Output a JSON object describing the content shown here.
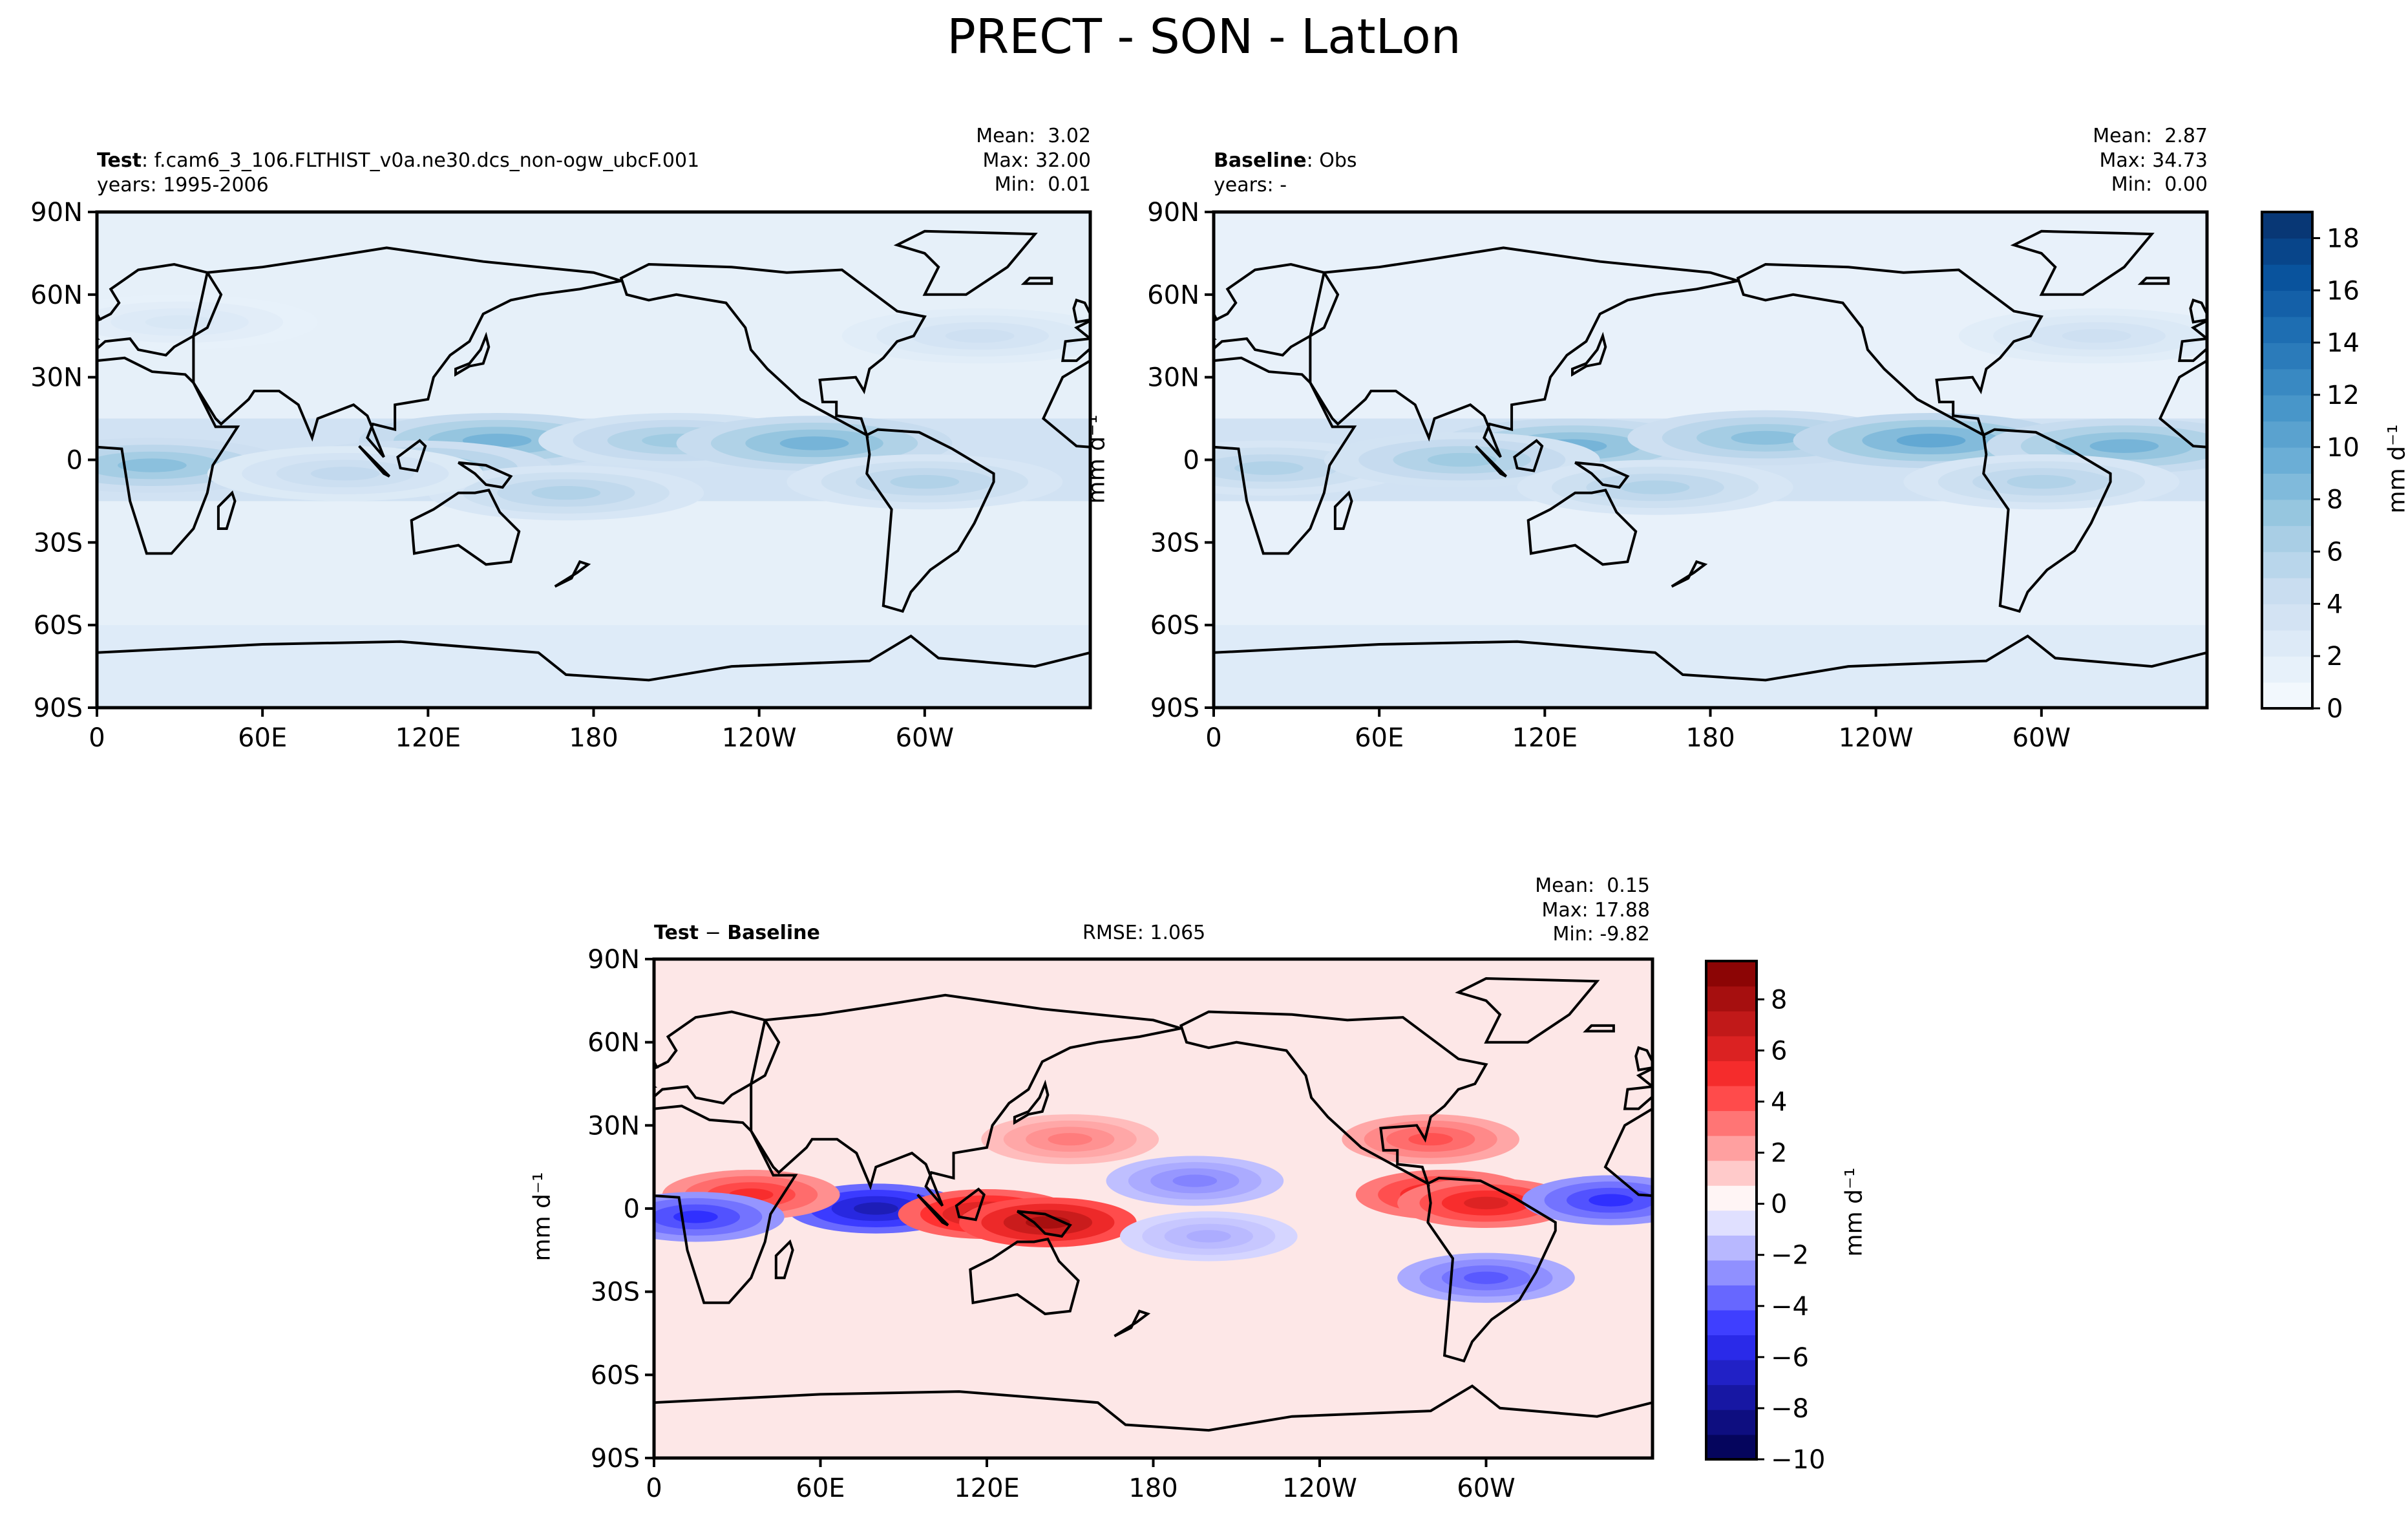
{
  "suptitle": "PRECT - SON - LatLon",
  "colors": {
    "blues_low": "#f7fbff",
    "blues_high": "#08306b",
    "seismic_neg": "#00004c",
    "seismic_mid": "#ffffff",
    "seismic_pos": "#7f0000",
    "land_outline": "#000000"
  },
  "panels": {
    "test": {
      "label_bold": "Test",
      "label_rest": ": f.cam6_3_106.FLTHIST_v0a.ne30.dcs_non-ogw_ubcF.001",
      "years": "years: 1995-2006",
      "stats": {
        "mean": "Mean:  3.02",
        "max": "Max: 32.00",
        "min": "Min:  0.01"
      }
    },
    "baseline": {
      "label_bold": "Baseline",
      "label_rest": ": Obs",
      "years": "years: -",
      "stats": {
        "mean": "Mean:  2.87",
        "max": "Max: 34.73",
        "min": "Min:  0.00"
      }
    },
    "diff": {
      "label_bold_a": "Test",
      "label_sep": " − ",
      "label_bold_b": "Baseline",
      "rmse": "RMSE: 1.065",
      "stats": {
        "mean": "Mean:  0.15",
        "max": "Max: 17.88",
        "min": "Min: -9.82"
      }
    }
  },
  "units_label": "mm d⁻¹",
  "chart_data": [
    {
      "type": "heatmap",
      "name": "Test",
      "x_ticks": [
        "0",
        "60E",
        "120E",
        "180",
        "120W",
        "60W"
      ],
      "y_ticks": [
        "90N",
        "60N",
        "30N",
        "0",
        "30S",
        "60S",
        "90S"
      ],
      "xlim": [
        0,
        360
      ],
      "ylim": [
        -90,
        90
      ],
      "mean": 3.02,
      "max": 32.0,
      "min": 0.01,
      "features": [
        {
          "lon": 145,
          "lat": 7,
          "value": 9
        },
        {
          "lon": 210,
          "lat": 7,
          "value": 7
        },
        {
          "lon": 260,
          "lat": 6,
          "value": 9
        },
        {
          "lon": 20,
          "lat": -2,
          "value": 8
        },
        {
          "lon": 115,
          "lat": -3,
          "value": 8
        },
        {
          "lon": 170,
          "lat": -12,
          "value": 6
        },
        {
          "lon": 90,
          "lat": -5,
          "value": 5
        },
        {
          "lon": 300,
          "lat": -8,
          "value": 6
        },
        {
          "lon": 30,
          "lat": 50,
          "value": 3
        },
        {
          "lon": 320,
          "lat": 45,
          "value": 4
        }
      ]
    },
    {
      "type": "heatmap",
      "name": "Baseline",
      "x_ticks": [
        "0",
        "60E",
        "120E",
        "180",
        "120W",
        "60W"
      ],
      "y_ticks": [
        "90N",
        "60N",
        "30N",
        "0",
        "30S",
        "60S",
        "90S"
      ],
      "xlim": [
        0,
        360
      ],
      "ylim": [
        -90,
        90
      ],
      "mean": 2.87,
      "max": 34.73,
      "min": 0.0,
      "features": [
        {
          "lon": 130,
          "lat": 5,
          "value": 9
        },
        {
          "lon": 200,
          "lat": 8,
          "value": 8
        },
        {
          "lon": 260,
          "lat": 7,
          "value": 10
        },
        {
          "lon": 330,
          "lat": 5,
          "value": 9
        },
        {
          "lon": 20,
          "lat": -3,
          "value": 6
        },
        {
          "lon": 90,
          "lat": 0,
          "value": 7
        },
        {
          "lon": 160,
          "lat": -10,
          "value": 6
        },
        {
          "lon": 300,
          "lat": -8,
          "value": 6
        },
        {
          "lon": 320,
          "lat": 45,
          "value": 4
        }
      ]
    },
    {
      "type": "heatmap",
      "name": "Test − Baseline",
      "x_ticks": [
        "0",
        "60E",
        "120E",
        "180",
        "120W",
        "60W"
      ],
      "y_ticks": [
        "90N",
        "60N",
        "30N",
        "0",
        "30S",
        "60S",
        "90S"
      ],
      "xlim": [
        0,
        360
      ],
      "ylim": [
        -90,
        90
      ],
      "mean": 0.15,
      "max": 17.88,
      "min": -9.82,
      "rmse": 1.065,
      "features": [
        {
          "lon": 80,
          "lat": 0,
          "value": -7
        },
        {
          "lon": 120,
          "lat": -2,
          "value": 7
        },
        {
          "lon": 142,
          "lat": -5,
          "value": 8
        },
        {
          "lon": 35,
          "lat": 5,
          "value": 5
        },
        {
          "lon": 15,
          "lat": -3,
          "value": -5
        },
        {
          "lon": 285,
          "lat": 5,
          "value": 6
        },
        {
          "lon": 300,
          "lat": 2,
          "value": 6
        },
        {
          "lon": 195,
          "lat": 10,
          "value": -3
        },
        {
          "lon": 345,
          "lat": 3,
          "value": -5
        },
        {
          "lon": 300,
          "lat": -25,
          "value": -4
        },
        {
          "lon": 150,
          "lat": 25,
          "value": 3
        },
        {
          "lon": 200,
          "lat": -10,
          "value": -2
        },
        {
          "lon": 280,
          "lat": 25,
          "value": 4
        }
      ]
    }
  ],
  "colorbars": {
    "levels": {
      "ticks": [
        "0",
        "2",
        "4",
        "6",
        "8",
        "10",
        "12",
        "14",
        "16",
        "18"
      ],
      "range": [
        0,
        19
      ],
      "n_levels": 19
    },
    "diff": {
      "ticks": [
        "−10",
        "−8",
        "−6",
        "−4",
        "−2",
        "0",
        "2",
        "4",
        "6",
        "8"
      ],
      "range": [
        -10,
        9.5
      ],
      "n_levels": 20
    }
  }
}
